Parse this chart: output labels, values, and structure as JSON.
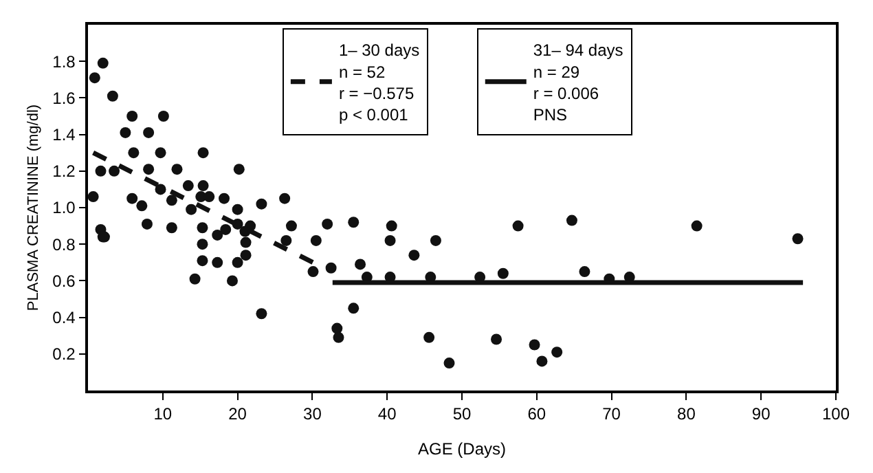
{
  "chart_data": {
    "type": "scatter",
    "xlabel": "AGE (Days)",
    "ylabel": "PLASMA CREATININE (mg/dl)",
    "xlim": [
      0,
      100
    ],
    "xticks": [
      10,
      20,
      30,
      40,
      50,
      60,
      70,
      80,
      90,
      100
    ],
    "ylim": [
      0,
      2.0
    ],
    "yticks": [
      0.2,
      0.4,
      0.6,
      0.8,
      {
        "value": 1.0,
        "label": "1.0"
      },
      1.2,
      1.4,
      1.6,
      1.8
    ],
    "legend": "top",
    "series": [
      {
        "marker": "circle",
        "color": "#111111",
        "x": [
          0.7,
          0.9,
          2,
          1.7,
          1.7,
          2.0,
          2.2,
          3.3,
          3.5,
          5,
          5.9,
          10.1,
          8.1,
          6.1,
          9.7,
          15.4,
          8.1,
          11.9,
          20.2,
          5.9,
          7.2,
          9.7,
          11.2,
          13.4,
          15.4,
          15.1,
          16.2,
          13.8,
          18.2,
          20,
          23.2,
          26.3,
          7.9,
          11.2,
          15.3,
          18.4,
          20,
          17.3,
          21.7,
          21,
          21.1,
          27.2,
          26.5,
          30.5,
          32,
          15.3,
          15.3,
          17.3,
          20,
          21.1,
          14.3,
          19.3,
          30.1,
          32.5,
          23.2,
          33.3,
          33.5,
          35.5,
          36.4,
          37.3,
          40.6,
          40.4,
          40.4,
          43.6,
          46.5,
          45.8,
          52.4,
          55.5,
          57.5,
          35.5,
          45.6,
          48.3,
          54.6,
          59.7,
          60.7,
          64.7,
          66.4,
          69.7,
          72.4,
          81.4,
          94.9,
          62.7
        ],
        "values": [
          1.06,
          1.71,
          1.79,
          1.2,
          0.88,
          0.84,
          0.84,
          1.61,
          1.2,
          1.41,
          1.5,
          1.5,
          1.41,
          1.3,
          1.3,
          1.3,
          1.21,
          1.21,
          1.21,
          1.05,
          1.01,
          1.1,
          1.04,
          1.12,
          1.12,
          1.06,
          1.06,
          0.99,
          1.05,
          0.99,
          1.02,
          1.05,
          0.91,
          0.89,
          0.89,
          0.88,
          0.91,
          0.85,
          0.9,
          0.87,
          0.81,
          0.9,
          0.82,
          0.82,
          0.91,
          0.8,
          0.71,
          0.7,
          0.7,
          0.74,
          0.61,
          0.6,
          0.65,
          0.67,
          0.42,
          0.34,
          0.29,
          0.92,
          0.69,
          0.62,
          0.9,
          0.82,
          0.62,
          0.74,
          0.82,
          0.62,
          0.62,
          0.64,
          0.9,
          0.45,
          0.29,
          0.15,
          0.28,
          0.25,
          0.16,
          0.93,
          0.65,
          0.61,
          0.62,
          0.9,
          0.83,
          0.21
        ]
      },
      {
        "type": "line",
        "name": "1– 30 days\nn = 52\nr = −0.575\np < 0.001",
        "color": "#111111",
        "line_style": "dashed",
        "x": [
          0.7,
          30.1
        ],
        "values": [
          1.3,
          0.7
        ]
      },
      {
        "type": "line",
        "name": "31– 94 days\nn = 29\nr = 0.006\nPNS",
        "color": "#111111",
        "line_style": "solid",
        "x": [
          32.7,
          95.6
        ],
        "values": [
          0.59,
          0.59
        ]
      }
    ]
  }
}
